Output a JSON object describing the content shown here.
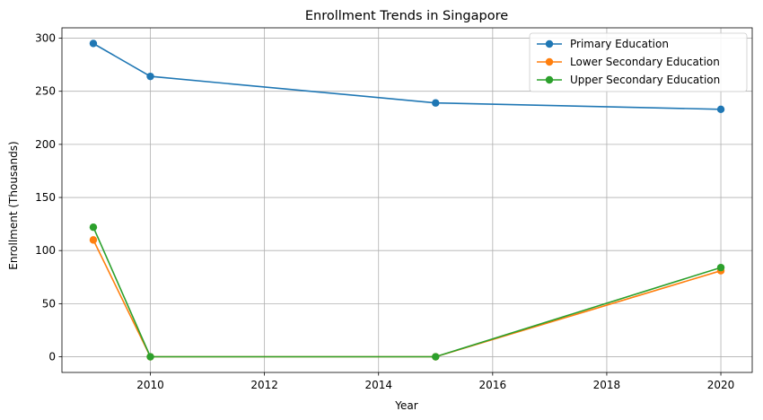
{
  "chart_data": {
    "type": "line",
    "title": "Enrollment Trends in Singapore",
    "xlabel": "Year",
    "ylabel": "Enrollment (Thousands)",
    "x": [
      2009,
      2010,
      2015,
      2020
    ],
    "xlim": [
      2008.45,
      2020.55
    ],
    "ylim": [
      -14.75,
      309.75
    ],
    "xticks": [
      2010,
      2012,
      2014,
      2016,
      2018,
      2020
    ],
    "yticks": [
      0,
      50,
      100,
      150,
      200,
      250,
      300
    ],
    "grid": true,
    "legend_position": "top-right",
    "series": [
      {
        "name": "Primary Education",
        "color": "#1f77b4",
        "values": [
          295,
          264,
          239,
          233
        ]
      },
      {
        "name": "Lower Secondary Education",
        "color": "#ff7f0e",
        "values": [
          110,
          0,
          0,
          81
        ]
      },
      {
        "name": "Upper Secondary Education",
        "color": "#2ca02c",
        "values": [
          122,
          0,
          0,
          84
        ]
      }
    ]
  }
}
